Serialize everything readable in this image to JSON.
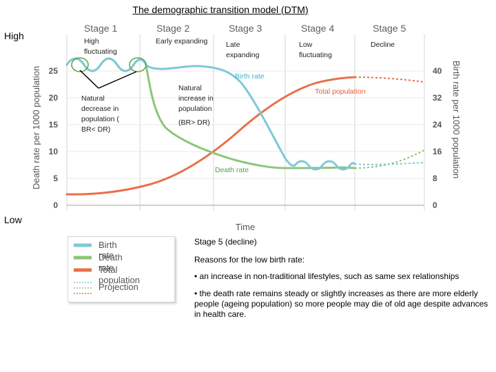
{
  "title": "The demographic transition model (DTM)",
  "side_labels": {
    "high": "High",
    "low": "Low"
  },
  "stages": [
    "Stage 1",
    "Stage 2",
    "Stage 3",
    "Stage 4",
    "Stage 5"
  ],
  "stage_notes": [
    "High fluctuating",
    "Early expanding",
    "Late expanding",
    "Low fluctuating",
    "Decline"
  ],
  "annotations": {
    "natural_decrease": "Natural decrease in population ( BR< DR)",
    "natural_increase": "Natural increase in population",
    "br_gt_dr": "(BR> DR)",
    "birth_rate": "Birth rate",
    "total_population": "Total population",
    "death_rate": "Death rate"
  },
  "axes": {
    "x_label": "Time",
    "left_label": "Death rate per 1000 population",
    "right_label": "Birth rate per 1000 population",
    "left_ticks": [
      "0",
      "5",
      "10",
      "15",
      "20",
      "25"
    ],
    "right_ticks": [
      "0",
      "8",
      "16",
      "24",
      "32",
      "40"
    ]
  },
  "colors": {
    "birth_rate": "#7ec8d8",
    "death_rate": "#8cc57a",
    "total_population": "#e8704a",
    "grid": "#e0e0e0"
  },
  "legend": {
    "items": [
      "Birth rate",
      "Death rate",
      "Total population"
    ],
    "projection": "Projection"
  },
  "right_text": {
    "heading": "Stage 5 (decline)",
    "subheading": "Reasons for the low birth rate:",
    "bullets": [
      "an increase in non-traditional lifestyles, such as same sex relationships",
      "the death rate remains steady or slightly increases as there are more elderly people (ageing population) so more people may die of old age despite advances in health care."
    ]
  }
}
